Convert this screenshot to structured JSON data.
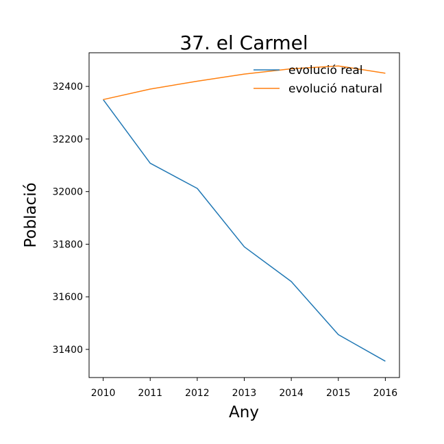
{
  "chart_data": {
    "type": "line",
    "title": "37. el Carmel",
    "xlabel": "Any",
    "ylabel": "Població",
    "x": [
      2010,
      2011,
      2012,
      2013,
      2014,
      2015,
      2016
    ],
    "xlim": [
      2009.7,
      2016.3
    ],
    "ylim": [
      31293,
      32528
    ],
    "yticks": [
      31400,
      31600,
      31800,
      32000,
      32200,
      32400
    ],
    "grid": false,
    "legend_position": "upper-right",
    "series": [
      {
        "name": "evolució real",
        "color": "#1f77b4",
        "values": [
          32350,
          32108,
          32012,
          31790,
          31658,
          31456,
          31355
        ]
      },
      {
        "name": "evolució natural",
        "color": "#ff7f0e",
        "values": [
          32350,
          32390,
          32420,
          32447,
          32467,
          32478,
          32450
        ]
      }
    ]
  }
}
